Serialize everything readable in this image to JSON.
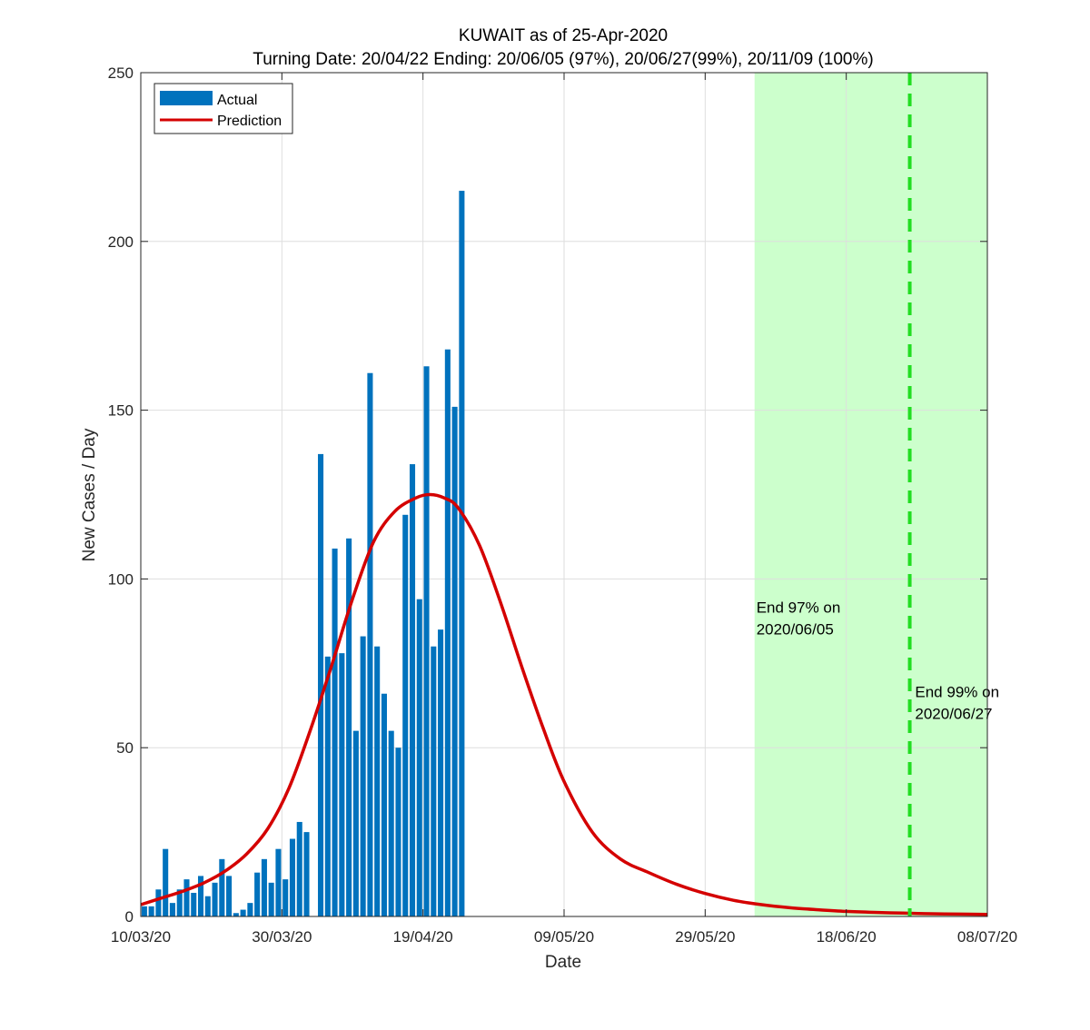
{
  "chart_data": {
    "type": "bar",
    "title": "KUWAIT as of 25-Apr-2020",
    "subtitle": "Turning Date: 20/04/22  Ending: 20/06/05 (97%), 20/06/27(99%), 20/11/09 (100%)",
    "xlabel": "Date",
    "ylabel": "New Cases / Day",
    "ylim": [
      0,
      250
    ],
    "xlim": [
      0,
      120
    ],
    "x_origin_date": "10/03/20",
    "grid": true,
    "legend_position": "top-left",
    "x_ticks": [
      {
        "x": 0,
        "label": "10/03/20"
      },
      {
        "x": 20,
        "label": "30/03/20"
      },
      {
        "x": 40,
        "label": "19/04/20"
      },
      {
        "x": 60,
        "label": "09/05/20"
      },
      {
        "x": 80,
        "label": "29/05/20"
      },
      {
        "x": 100,
        "label": "18/06/20"
      },
      {
        "x": 120,
        "label": "08/07/20"
      }
    ],
    "y_ticks": [
      {
        "y": 0,
        "label": "0"
      },
      {
        "y": 50,
        "label": "50"
      },
      {
        "y": 100,
        "label": "100"
      },
      {
        "y": 150,
        "label": "150"
      },
      {
        "y": 200,
        "label": "200"
      },
      {
        "y": 250,
        "label": "250"
      }
    ],
    "series": [
      {
        "name": "Actual",
        "type": "bar",
        "color": "#0072BD",
        "x": [
          0,
          1,
          2,
          3,
          4,
          5,
          6,
          7,
          8,
          9,
          10,
          11,
          12,
          13,
          14,
          15,
          16,
          17,
          18,
          19,
          20,
          21,
          22,
          23,
          24,
          25,
          26,
          27,
          28,
          29,
          30,
          31,
          32,
          33,
          34,
          35,
          36,
          37,
          38,
          39,
          40,
          41,
          42,
          43,
          44,
          45
        ],
        "values": [
          3,
          3,
          8,
          20,
          4,
          8,
          11,
          7,
          12,
          6,
          10,
          17,
          12,
          1,
          2,
          4,
          13,
          17,
          10,
          20,
          11,
          23,
          28,
          25,
          0,
          137,
          77,
          109,
          78,
          112,
          55,
          83,
          161,
          80,
          66,
          55,
          50,
          119,
          134,
          94,
          163,
          80,
          85,
          168,
          151,
          215
        ]
      },
      {
        "name": "Prediction",
        "type": "line",
        "color": "#D40000",
        "x": [
          0,
          3,
          6,
          9,
          12,
          15,
          18,
          21,
          24,
          27,
          30,
          33,
          36,
          39,
          41,
          43,
          45,
          48,
          51,
          54,
          57,
          60,
          64,
          68,
          72,
          76,
          80,
          84,
          88,
          92,
          96,
          100,
          104,
          108,
          112,
          116,
          120
        ],
        "values": [
          3.5,
          5.5,
          7.5,
          10,
          13.5,
          18.5,
          26,
          38,
          55,
          74,
          94,
          111,
          120,
          124,
          125,
          124,
          121,
          110,
          93,
          74,
          56,
          40,
          25,
          17,
          13,
          9.5,
          6.8,
          4.8,
          3.5,
          2.6,
          2,
          1.5,
          1.2,
          1,
          0.8,
          0.7,
          0.6
        ]
      }
    ],
    "end_region": {
      "x_start": 87,
      "x_end": 120,
      "color": "#CCFFCC"
    },
    "end_line": {
      "x": 109,
      "color": "#22DD22"
    },
    "annotations": [
      {
        "x": 87,
        "y": 90,
        "lines": [
          "End 97% on",
          "2020/06/05"
        ]
      },
      {
        "x": 109.5,
        "y": 65,
        "lines": [
          "End 99% on",
          "2020/06/27"
        ]
      }
    ]
  }
}
